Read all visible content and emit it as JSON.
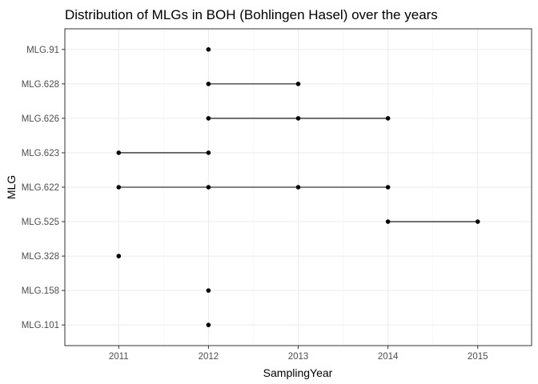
{
  "chart_data": {
    "type": "line",
    "title": "Distribution of MLGs in BOH (Bohlingen Hasel) over the years",
    "xlabel": "SamplingYear",
    "ylabel": "MLG",
    "x_ticks": [
      2011,
      2012,
      2013,
      2014,
      2015
    ],
    "xlim": [
      2010.4,
      2015.6
    ],
    "categories": [
      "MLG.101",
      "MLG.158",
      "MLG.328",
      "MLG.525",
      "MLG.622",
      "MLG.623",
      "MLG.626",
      "MLG.628",
      "MLG.91"
    ],
    "series": [
      {
        "category": "MLG.101",
        "years": [
          2012
        ]
      },
      {
        "category": "MLG.158",
        "years": [
          2012
        ]
      },
      {
        "category": "MLG.328",
        "years": [
          2011
        ]
      },
      {
        "category": "MLG.525",
        "years": [
          2014,
          2015
        ]
      },
      {
        "category": "MLG.622",
        "years": [
          2011,
          2012,
          2013,
          2014
        ]
      },
      {
        "category": "MLG.623",
        "years": [
          2011,
          2012
        ]
      },
      {
        "category": "MLG.626",
        "years": [
          2012,
          2013,
          2014
        ]
      },
      {
        "category": "MLG.628",
        "years": [
          2012,
          2013
        ]
      },
      {
        "category": "MLG.91",
        "years": [
          2012
        ]
      }
    ],
    "grid": true,
    "theme_colors": {
      "panel_border": "#333333",
      "grid_major": "#ebebeb",
      "grid_minor": "#f5f5f5",
      "points": "#000000",
      "tick_text": "#4d4d4d"
    }
  }
}
